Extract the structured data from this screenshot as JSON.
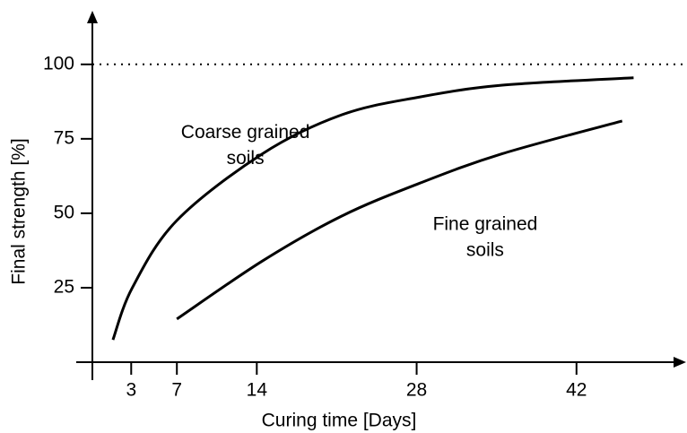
{
  "chart_data": {
    "type": "line",
    "x_label": "Curing time [Days]",
    "y_label": "Final strength [%]",
    "xlim": [
      -0.4,
      51.6
    ],
    "ylim": [
      0,
      118
    ],
    "xticks": [
      3,
      7,
      14,
      28,
      42
    ],
    "yticks": [
      25,
      50,
      75,
      100
    ],
    "reference_line": {
      "value": 100,
      "style": "dotted"
    },
    "series": [
      {
        "color": "#000000",
        "x": [
          1.4,
          3.1,
          7,
          14.5,
          21.4,
          28.2,
          35.5,
          47
        ],
        "values": [
          7.5,
          25,
          47.6,
          70,
          83,
          89,
          93,
          95.5
        ]
      },
      {
        "color": "#000000",
        "x": [
          7,
          14.5,
          21.4,
          28.2,
          35.5,
          46
        ],
        "values": [
          14.5,
          34,
          49,
          60,
          70,
          81
        ]
      }
    ],
    "annotations": [
      {
        "lines": [
          "Coarse grained",
          "soils"
        ],
        "x": 13,
        "y": 77
      },
      {
        "lines": [
          "Fine grained",
          "soils"
        ],
        "x": 34,
        "y": 46
      }
    ]
  }
}
